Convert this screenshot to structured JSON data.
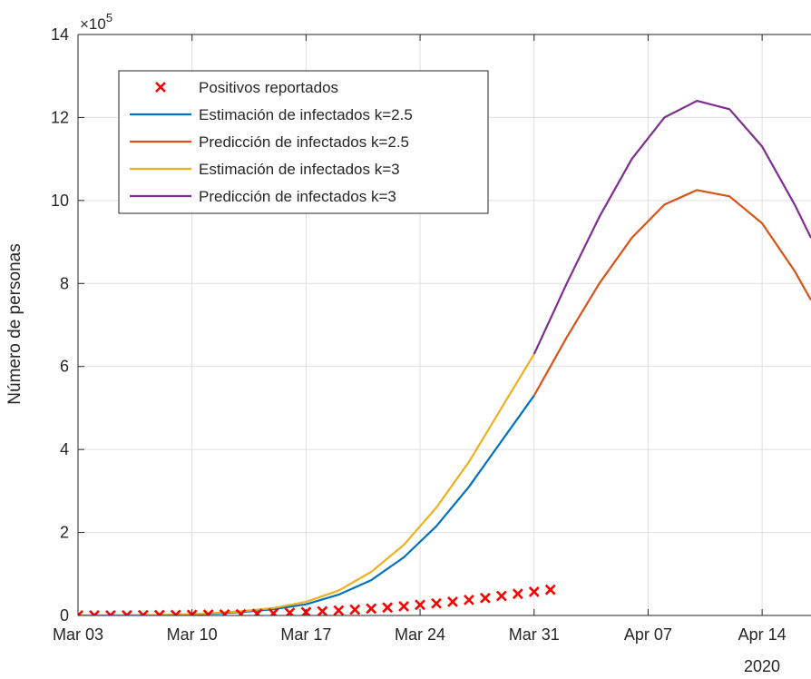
{
  "chart_data": {
    "type": "line",
    "title": "",
    "ylabel": "Número de personas",
    "xlabel": "",
    "x_year_label": "2020",
    "y_exponent_label": "×10",
    "y_exponent_power": "5",
    "xlim": [
      "2020-03-03",
      "2020-04-17"
    ],
    "ylim": [
      0,
      1400000
    ],
    "x_ticks": [
      {
        "date": "2020-03-03",
        "label": "Mar 03"
      },
      {
        "date": "2020-03-10",
        "label": "Mar 10"
      },
      {
        "date": "2020-03-17",
        "label": "Mar 17"
      },
      {
        "date": "2020-03-24",
        "label": "Mar 24"
      },
      {
        "date": "2020-03-31",
        "label": "Mar 31"
      },
      {
        "date": "2020-04-07",
        "label": "Apr 07"
      },
      {
        "date": "2020-04-14",
        "label": "Apr 14"
      }
    ],
    "y_ticks": [
      {
        "value": 0,
        "label": "0"
      },
      {
        "value": 200000,
        "label": "2"
      },
      {
        "value": 400000,
        "label": "4"
      },
      {
        "value": 600000,
        "label": "6"
      },
      {
        "value": 800000,
        "label": "8"
      },
      {
        "value": 1000000,
        "label": "10"
      },
      {
        "value": 1200000,
        "label": "12"
      },
      {
        "value": 1400000,
        "label": "14"
      }
    ],
    "grid": true,
    "legend_position": "top-left",
    "series": [
      {
        "name": "Positivos reportados",
        "style": "marker-x",
        "color": "#ff0000",
        "points": [
          [
            "2020-03-03",
            100
          ],
          [
            "2020-03-04",
            200
          ],
          [
            "2020-03-05",
            300
          ],
          [
            "2020-03-06",
            500
          ],
          [
            "2020-03-07",
            700
          ],
          [
            "2020-03-08",
            900
          ],
          [
            "2020-03-09",
            1200
          ],
          [
            "2020-03-10",
            1500
          ],
          [
            "2020-03-11",
            2000
          ],
          [
            "2020-03-12",
            2500
          ],
          [
            "2020-03-13",
            3000
          ],
          [
            "2020-03-14",
            4000
          ],
          [
            "2020-03-15",
            5000
          ],
          [
            "2020-03-16",
            6500
          ],
          [
            "2020-03-17",
            8000
          ],
          [
            "2020-03-18",
            10000
          ],
          [
            "2020-03-19",
            12000
          ],
          [
            "2020-03-20",
            14000
          ],
          [
            "2020-03-21",
            16500
          ],
          [
            "2020-03-22",
            19000
          ],
          [
            "2020-03-23",
            22000
          ],
          [
            "2020-03-24",
            25500
          ],
          [
            "2020-03-25",
            29000
          ],
          [
            "2020-03-26",
            33000
          ],
          [
            "2020-03-27",
            37500
          ],
          [
            "2020-03-28",
            42000
          ],
          [
            "2020-03-29",
            47000
          ],
          [
            "2020-03-30",
            52000
          ],
          [
            "2020-03-31",
            57000
          ],
          [
            "2020-04-01",
            62000
          ]
        ]
      },
      {
        "name": "Estimación de infectados k=2.5",
        "style": "line",
        "color": "#0072bd",
        "points": [
          [
            "2020-03-03",
            0
          ],
          [
            "2020-03-05",
            0
          ],
          [
            "2020-03-07",
            500
          ],
          [
            "2020-03-09",
            1500
          ],
          [
            "2020-03-11",
            4000
          ],
          [
            "2020-03-13",
            8000
          ],
          [
            "2020-03-15",
            15000
          ],
          [
            "2020-03-17",
            27000
          ],
          [
            "2020-03-19",
            50000
          ],
          [
            "2020-03-21",
            85000
          ],
          [
            "2020-03-23",
            140000
          ],
          [
            "2020-03-25",
            215000
          ],
          [
            "2020-03-27",
            310000
          ],
          [
            "2020-03-29",
            420000
          ],
          [
            "2020-03-31",
            530000
          ]
        ]
      },
      {
        "name": "Predicción de infectados k=2.5",
        "style": "line",
        "color": "#d95319",
        "points": [
          [
            "2020-03-31",
            530000
          ],
          [
            "2020-04-02",
            670000
          ],
          [
            "2020-04-04",
            800000
          ],
          [
            "2020-04-06",
            910000
          ],
          [
            "2020-04-08",
            990000
          ],
          [
            "2020-04-10",
            1025000
          ],
          [
            "2020-04-12",
            1010000
          ],
          [
            "2020-04-14",
            945000
          ],
          [
            "2020-04-16",
            830000
          ],
          [
            "2020-04-17",
            760000
          ]
        ]
      },
      {
        "name": "Estimación de infectados k=3",
        "style": "line",
        "color": "#edb120",
        "points": [
          [
            "2020-03-03",
            0
          ],
          [
            "2020-03-05",
            0
          ],
          [
            "2020-03-07",
            500
          ],
          [
            "2020-03-09",
            2000
          ],
          [
            "2020-03-11",
            5000
          ],
          [
            "2020-03-13",
            10000
          ],
          [
            "2020-03-15",
            18000
          ],
          [
            "2020-03-17",
            33000
          ],
          [
            "2020-03-19",
            60000
          ],
          [
            "2020-03-21",
            105000
          ],
          [
            "2020-03-23",
            170000
          ],
          [
            "2020-03-25",
            260000
          ],
          [
            "2020-03-27",
            370000
          ],
          [
            "2020-03-29",
            500000
          ],
          [
            "2020-03-31",
            630000
          ]
        ]
      },
      {
        "name": "Predicción de infectados k=3",
        "style": "line",
        "color": "#7e2f8e",
        "points": [
          [
            "2020-03-31",
            630000
          ],
          [
            "2020-04-02",
            800000
          ],
          [
            "2020-04-04",
            960000
          ],
          [
            "2020-04-06",
            1100000
          ],
          [
            "2020-04-08",
            1200000
          ],
          [
            "2020-04-10",
            1240000
          ],
          [
            "2020-04-12",
            1220000
          ],
          [
            "2020-04-14",
            1130000
          ],
          [
            "2020-04-16",
            990000
          ],
          [
            "2020-04-17",
            910000
          ]
        ]
      }
    ]
  }
}
